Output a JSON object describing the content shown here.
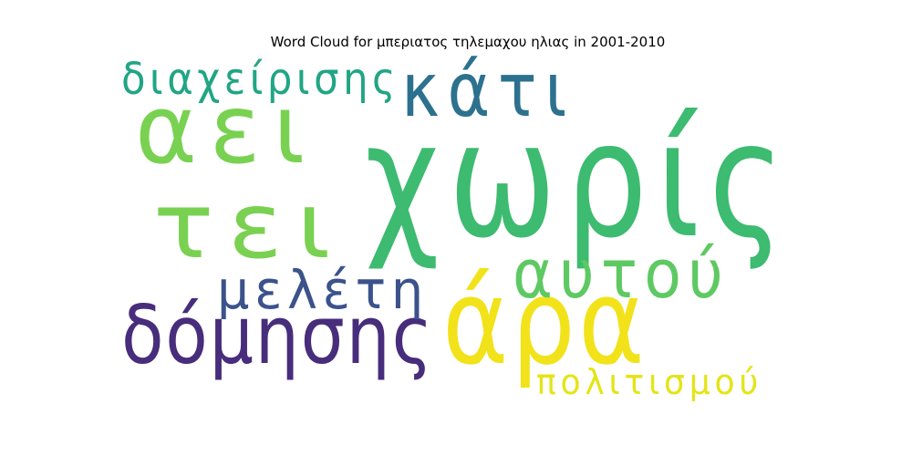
{
  "chart_data": {
    "type": "wordcloud",
    "title": "Word Cloud for μπεριατος τηλεμαχου ηλιας in 2001-2010",
    "words": [
      {
        "text": "χωρίς",
        "color": "#3dbb70"
      },
      {
        "text": "άρα",
        "color": "#f2e21a"
      },
      {
        "text": "αει",
        "color": "#79d151"
      },
      {
        "text": "τει",
        "color": "#7ad151"
      },
      {
        "text": "κάτι",
        "color": "#2c718e"
      },
      {
        "text": "δόμησης",
        "color": "#472d7b"
      },
      {
        "text": "αυτού",
        "color": "#5ec962"
      },
      {
        "text": "μελέτη",
        "color": "#3b528b"
      },
      {
        "text": "διαχείρισης",
        "color": "#21a585"
      },
      {
        "text": "πολιτισμού",
        "color": "#e4e419"
      }
    ]
  }
}
